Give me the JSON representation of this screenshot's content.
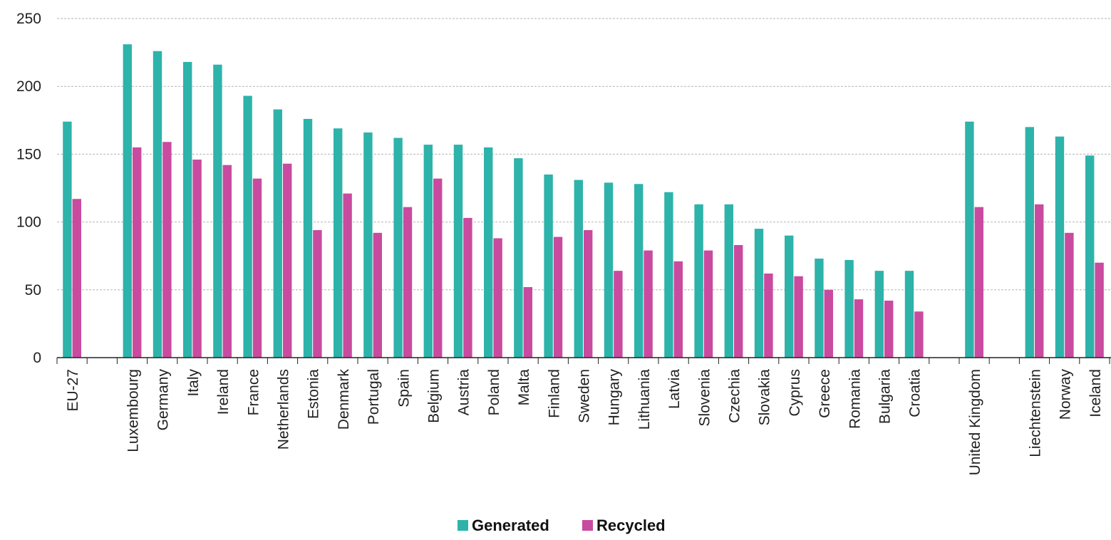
{
  "chart_data": {
    "type": "bar",
    "categories": [
      "EU-27",
      "Luxembourg",
      "Germany",
      "Italy",
      "Ireland",
      "France",
      "Netherlands",
      "Estonia",
      "Denmark",
      "Portugal",
      "Spain",
      "Belgium",
      "Austria",
      "Poland",
      "Malta",
      "Finland",
      "Sweden",
      "Hungary",
      "Lithuania",
      "Latvia",
      "Slovenia",
      "Czechia",
      "Slovakia",
      "Cyprus",
      "Greece",
      "Romania",
      "Bulgaria",
      "Croatia",
      "United Kingdom",
      "Liechtenstein",
      "Norway",
      "Iceland"
    ],
    "series": [
      {
        "name": "Generated",
        "color": "#2db3aa",
        "values": [
          174,
          231,
          226,
          218,
          216,
          193,
          183,
          176,
          169,
          166,
          162,
          157,
          157,
          155,
          147,
          135,
          131,
          129,
          128,
          122,
          113,
          113,
          95,
          90,
          73,
          72,
          64,
          64,
          174,
          170,
          163,
          149
        ]
      },
      {
        "name": "Recycled",
        "color": "#c84b9f",
        "values": [
          117,
          155,
          159,
          146,
          142,
          132,
          143,
          94,
          121,
          92,
          111,
          132,
          103,
          88,
          52,
          89,
          94,
          64,
          79,
          71,
          79,
          83,
          62,
          60,
          50,
          43,
          42,
          34,
          111,
          113,
          92,
          70
        ]
      }
    ],
    "yticks": [
      0,
      50,
      100,
      150,
      200,
      250
    ],
    "ylim": [
      0,
      250
    ],
    "grid": true,
    "legend": "bottom-center",
    "title": "",
    "xlabel": "",
    "ylabel": ""
  }
}
